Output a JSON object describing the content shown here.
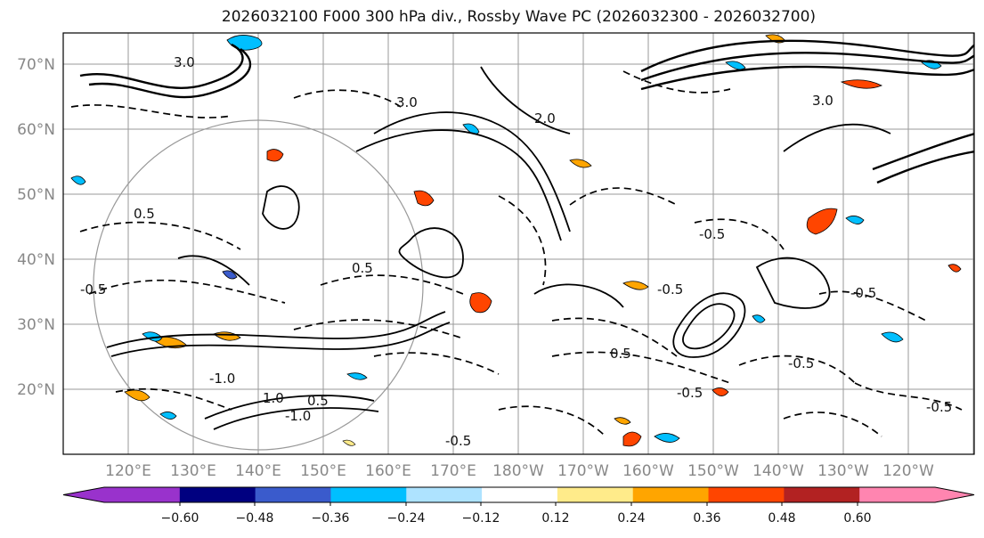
{
  "title": "2026032100 F000 300 hPa div., Rossby Wave PC (2026032300 - 2026032700)",
  "map": {
    "lat_labels": [
      "70°N",
      "60°N",
      "50°N",
      "40°N",
      "30°N",
      "20°N"
    ],
    "lon_labels": [
      "120°E",
      "130°E",
      "140°E",
      "150°E",
      "160°E",
      "170°E",
      "180°W",
      "170°W",
      "160°W",
      "150°W",
      "140°W",
      "130°W",
      "120°W"
    ],
    "contour_labels": [
      "3.0",
      "2.0",
      "3.0",
      "0.5",
      "-0.5",
      "-0.5",
      "-0.5",
      "-1.0",
      "1.0",
      "-1.0",
      "-0.5",
      "0.5",
      "0.5",
      "-0.5",
      "3.0",
      "-0.5",
      "-0.5",
      "-0.5",
      "0.5"
    ],
    "colors": {
      "shade_orange": "#ffa500",
      "shade_red": "#ff4500",
      "shade_blue": "#00bfff",
      "shade_lightblue": "#aee3ff",
      "shade_yellow": "#ffeb8a",
      "contour": "#000000",
      "grid": "#9a9a9a"
    }
  },
  "colorbar": {
    "ticks": [
      "−0.60",
      "−0.48",
      "−0.36",
      "−0.24",
      "−0.12",
      "0.12",
      "0.24",
      "0.36",
      "0.48",
      "0.60"
    ],
    "colors": [
      "#9932cc",
      "#000080",
      "#3a5bcc",
      "#00bfff",
      "#aee3ff",
      "#ffffff",
      "#ffeb8a",
      "#ffa500",
      "#ff4500",
      "#b22222",
      "#ff85b0"
    ]
  }
}
